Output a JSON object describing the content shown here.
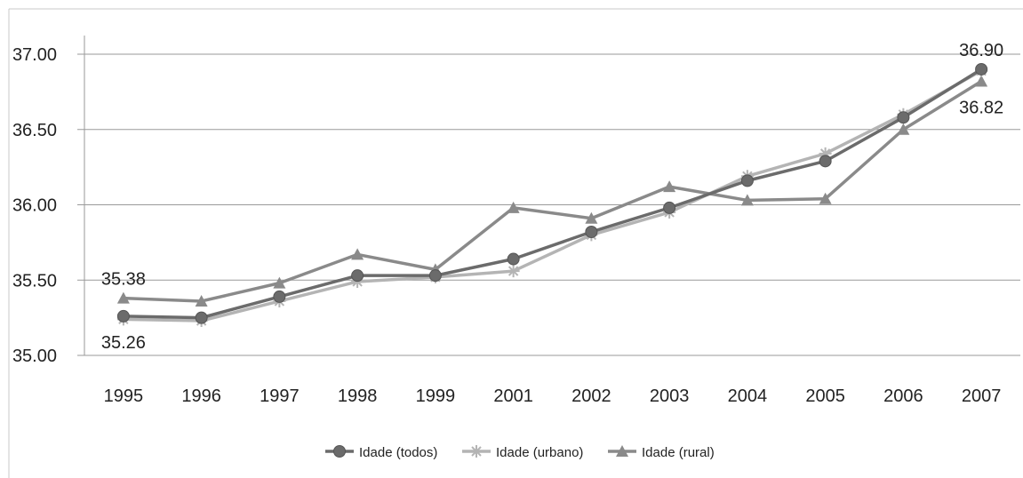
{
  "chart_data": {
    "type": "line",
    "title": "",
    "xlabel": "",
    "ylabel": "",
    "categories": [
      "1995",
      "1996",
      "1997",
      "1998",
      "1999",
      "2001",
      "2002",
      "2003",
      "2004",
      "2005",
      "2006",
      "2007"
    ],
    "ylim": [
      35.0,
      37.0
    ],
    "yticks": [
      "35.00",
      "35.50",
      "36.00",
      "36.50",
      "37.00"
    ],
    "grid": true,
    "legend_position": "bottom",
    "series": [
      {
        "name": "Idade (todos)",
        "marker": "circle",
        "color": "#6b6b6b",
        "values": [
          35.26,
          35.25,
          35.39,
          35.53,
          35.53,
          35.64,
          35.82,
          35.98,
          36.16,
          36.29,
          36.58,
          36.9
        ]
      },
      {
        "name": "Idade (urbano)",
        "marker": "star",
        "color": "#b4b4b4",
        "values": [
          35.24,
          35.23,
          35.36,
          35.49,
          35.52,
          35.56,
          35.8,
          35.95,
          36.19,
          36.34,
          36.6,
          36.89
        ]
      },
      {
        "name": "Idade (rural)",
        "marker": "triangle",
        "color": "#8a8a8a",
        "values": [
          35.38,
          35.36,
          35.48,
          35.67,
          35.57,
          35.98,
          35.91,
          36.12,
          36.03,
          36.04,
          36.5,
          36.82
        ]
      }
    ],
    "annotations": [
      {
        "text": "35.38",
        "series": 2,
        "index": 0,
        "pos": "above"
      },
      {
        "text": "35.26",
        "series": 0,
        "index": 0,
        "pos": "below"
      },
      {
        "text": "36.90",
        "series": 0,
        "index": 11,
        "pos": "above"
      },
      {
        "text": "36.82",
        "series": 2,
        "index": 11,
        "pos": "below"
      }
    ]
  }
}
